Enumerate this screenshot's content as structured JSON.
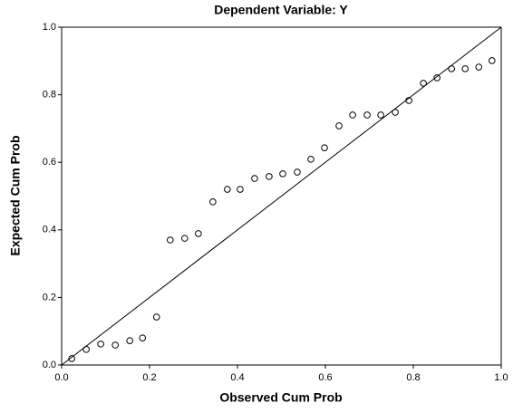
{
  "chart_data": {
    "type": "scatter",
    "title": "Dependent Variable: Y",
    "x_label": "Observed Cum Prob",
    "y_label": "Expected Cum Prob",
    "x": [
      0.023,
      0.056,
      0.089,
      0.122,
      0.155,
      0.184,
      0.216,
      0.247,
      0.28,
      0.311,
      0.344,
      0.377,
      0.406,
      0.439,
      0.472,
      0.503,
      0.536,
      0.567,
      0.598,
      0.631,
      0.662,
      0.695,
      0.726,
      0.759,
      0.79,
      0.823,
      0.854,
      0.887,
      0.918,
      0.949,
      0.979
    ],
    "values": [
      0.019,
      0.046,
      0.062,
      0.059,
      0.072,
      0.08,
      0.142,
      0.37,
      0.375,
      0.389,
      0.483,
      0.52,
      0.52,
      0.552,
      0.558,
      0.566,
      0.571,
      0.609,
      0.643,
      0.708,
      0.74,
      0.74,
      0.74,
      0.748,
      0.783,
      0.834,
      0.85,
      0.877,
      0.877,
      0.882,
      0.901
    ],
    "xlim": [
      0,
      1
    ],
    "ylim": [
      0,
      1
    ],
    "xticks": [
      {
        "value": 0,
        "label": "0.0"
      },
      0.2,
      0.4,
      0.6,
      0.8,
      {
        "value": 1,
        "label": "1.0"
      }
    ],
    "yticks": [
      {
        "value": 0,
        "label": "0.0"
      },
      0.2,
      0.4,
      0.6,
      0.8,
      {
        "value": 1,
        "label": "1.0"
      }
    ],
    "color": "#000000"
  }
}
